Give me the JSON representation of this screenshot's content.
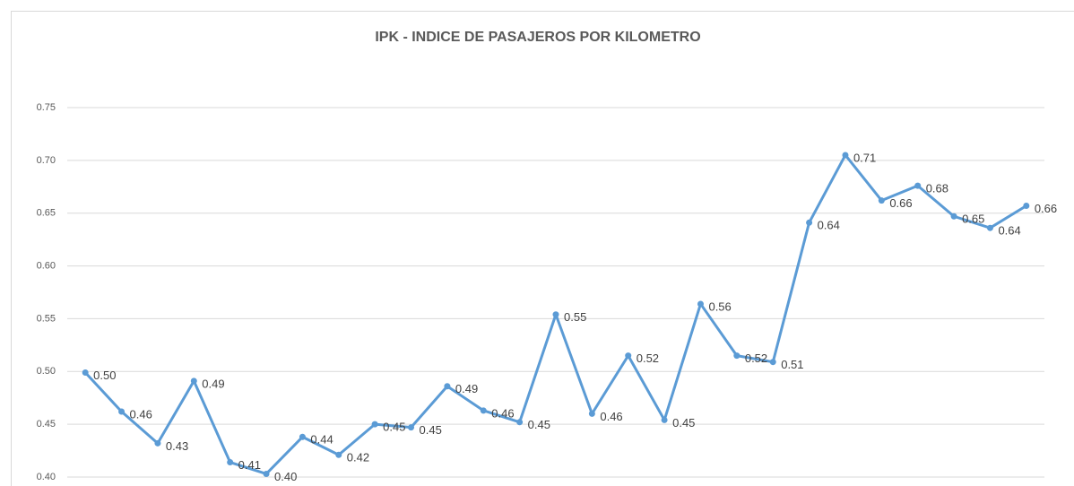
{
  "chart_data": {
    "type": "line",
    "title": "IPK - INDICE DE PASAJEROS POR KILOMETRO",
    "categories": [
      null,
      null,
      null,
      null,
      null,
      null,
      null,
      null,
      null,
      null,
      null,
      null,
      null,
      null,
      null,
      null,
      null,
      null,
      null,
      null,
      null,
      null,
      null,
      null,
      null,
      null,
      null
    ],
    "series": [
      {
        "name": null,
        "color": "#5b9bd5",
        "values": [
          0.499,
          0.462,
          0.432,
          0.491,
          0.414,
          0.403,
          0.438,
          0.421,
          0.45,
          0.447,
          0.486,
          0.463,
          0.452,
          0.554,
          0.46,
          0.515,
          0.454,
          0.564,
          0.515,
          0.509,
          0.641,
          0.705,
          0.662,
          0.676,
          0.647,
          0.636,
          0.657
        ],
        "value_labels": [
          "0.50",
          "0.46",
          "0.43",
          "0.49",
          "0.41",
          "0.40",
          "0.44",
          "0.42",
          "0.45",
          "0.45",
          "0.49",
          "0.46",
          "0.45",
          "0.55",
          "0.46",
          "0.52",
          "0.45",
          "0.56",
          "0.52",
          "0.51",
          "0.64",
          "0.71",
          "0.66",
          "0.68",
          "0.65",
          "0.64",
          "0.66"
        ]
      }
    ],
    "ylim": [
      0.4,
      0.75
    ],
    "yticks": [
      {
        "value": 0.4,
        "label": "0.40"
      },
      {
        "value": 0.45,
        "label": "0.45"
      },
      {
        "value": 0.5,
        "label": "0.50"
      },
      {
        "value": 0.55,
        "label": "0.55"
      },
      {
        "value": 0.6,
        "label": "0.60"
      },
      {
        "value": 0.65,
        "label": "0.65"
      },
      {
        "value": 0.7,
        "label": "0.70"
      },
      {
        "value": 0.75,
        "label": "0.75"
      }
    ],
    "grid": true
  }
}
